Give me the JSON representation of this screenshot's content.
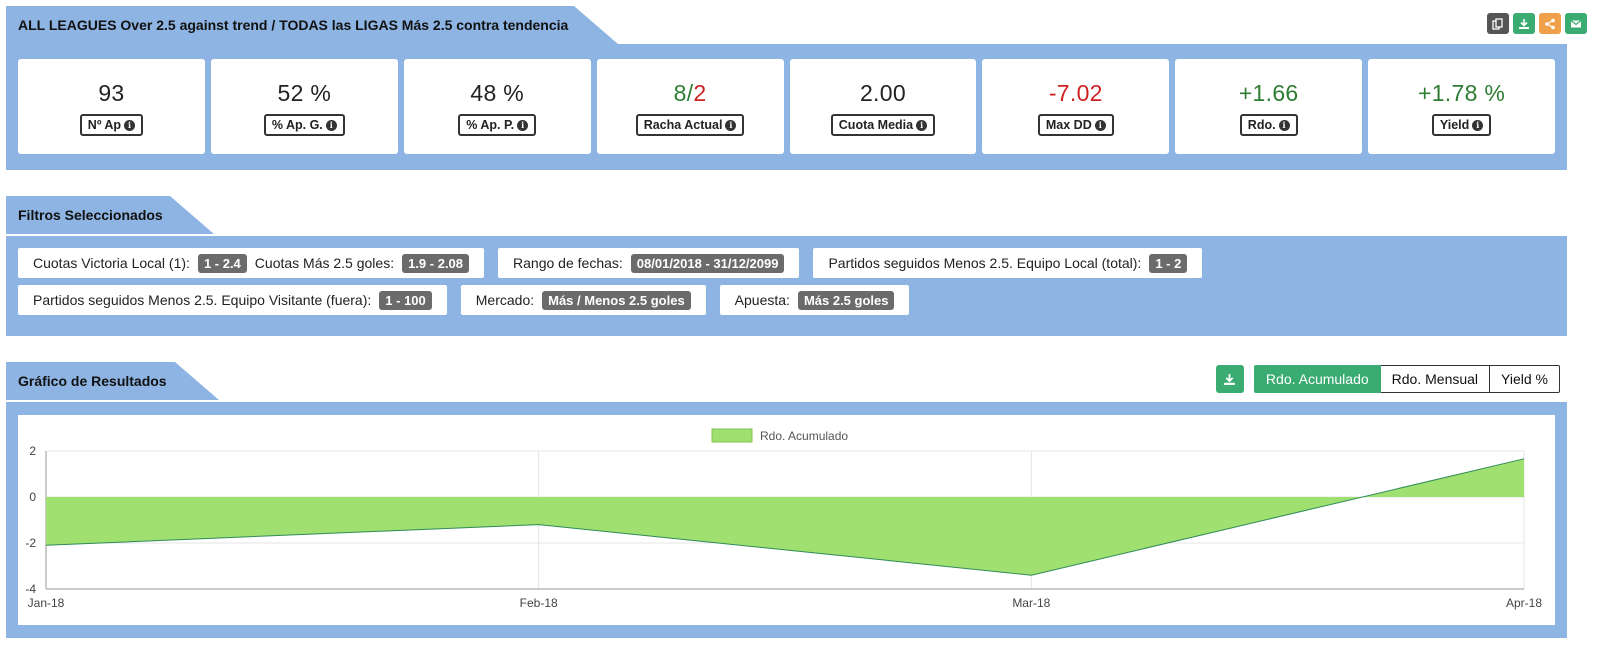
{
  "header": {
    "title": "ALL LEAGUES Over 2.5 against trend / TODAS las LIGAS Más 2.5 contra tendencia",
    "tools": [
      {
        "icon": "copy-icon",
        "color": "#555555"
      },
      {
        "icon": "download-icon",
        "color": "#3aac72"
      },
      {
        "icon": "share-icon",
        "color": "#f0a04b"
      },
      {
        "icon": "envelope-icon",
        "color": "#3aac72"
      }
    ]
  },
  "stats": [
    {
      "value": "93",
      "label": "Nº Ap",
      "color": "#222222"
    },
    {
      "value": "52 %",
      "label": "% Ap. G.",
      "color": "#222222"
    },
    {
      "value": "48 %",
      "label": "% Ap. P.",
      "color": "#222222"
    },
    {
      "value_green": "8",
      "sep": "/",
      "value_red": "2",
      "label": "Racha Actual"
    },
    {
      "value": "2.00",
      "label": "Cuota Media",
      "color": "#222222"
    },
    {
      "value": "-7.02",
      "label": "Max DD",
      "color": "#cc2222"
    },
    {
      "value": "+1.66",
      "label": "Rdo.",
      "color": "#2e7d32"
    },
    {
      "value": "+1.78 %",
      "label": "Yield",
      "color": "#2e7d32"
    }
  ],
  "filters": {
    "title": "Filtros Seleccionados",
    "row1": [
      {
        "label": "Cuotas Victoria Local (1):",
        "value": "1 - 2.4",
        "label2": "Cuotas Más 2.5 goles:",
        "value2": "1.9 - 2.08"
      },
      {
        "label": "Rango de fechas:",
        "value": "08/01/2018 - 31/12/2099"
      },
      {
        "label": "Partidos seguidos Menos 2.5. Equipo Local (total):",
        "value": "1 - 2"
      }
    ],
    "row2": [
      {
        "label": "Partidos seguidos Menos 2.5. Equipo Visitante (fuera):",
        "value": "1 - 100"
      },
      {
        "label": "Mercado:",
        "value": "Más / Menos 2.5 goles"
      },
      {
        "label": "Apuesta:",
        "value": "Más 2.5 goles"
      }
    ]
  },
  "chart_section": {
    "title": "Gráfico de Resultados",
    "buttons": [
      "Rdo. Acumulado",
      "Rdo. Mensual",
      "Yield %"
    ],
    "active": "Rdo. Acumulado"
  },
  "chart_data": {
    "type": "area",
    "x": [
      "Jan-18",
      "Feb-18",
      "Mar-18",
      "Apr-18"
    ],
    "series": [
      {
        "name": "Rdo. Acumulado",
        "values": [
          -2.1,
          -1.2,
          -3.4,
          1.66
        ],
        "color": "#a0e070",
        "line_color": "#2e8b57"
      }
    ],
    "yticks": [
      2,
      0,
      -2,
      -4
    ],
    "ylim": [
      -4,
      2
    ],
    "legend": "top-center",
    "grid": true
  }
}
